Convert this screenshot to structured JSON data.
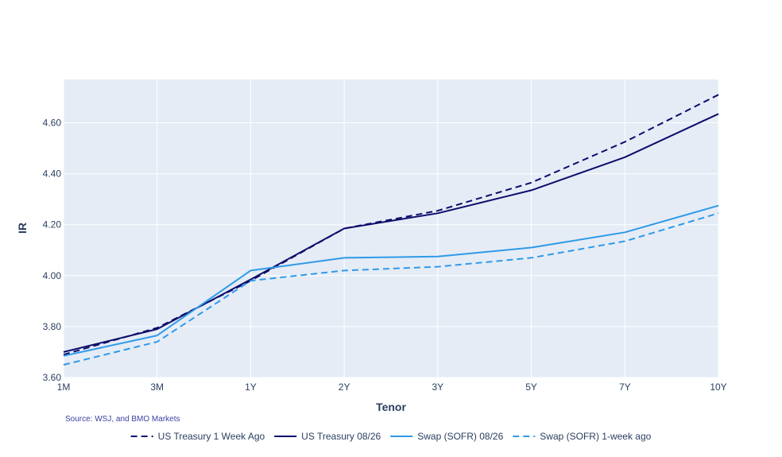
{
  "chart_data": {
    "type": "line",
    "categories": [
      "1M",
      "3M",
      "1Y",
      "2Y",
      "3Y",
      "5Y",
      "7Y",
      "10Y"
    ],
    "xlabel": "Tenor",
    "ylabel": "IR",
    "ylim": [
      3.6,
      4.77
    ],
    "yticks": [
      "3.60",
      "3.80",
      "4.00",
      "4.20",
      "4.40",
      "4.60"
    ],
    "ytick_values": [
      3.6,
      3.8,
      4.0,
      4.2,
      4.4,
      4.6
    ],
    "grid": true,
    "legend_position": "bottom-center",
    "annotation": "Source: WSJ, and BMO Markets",
    "series": [
      {
        "name": "US Treasury 1 Week Ago",
        "color": "#0d0d6b",
        "dash": "dashed",
        "values": [
          3.69,
          3.795,
          3.98,
          4.185,
          4.255,
          4.365,
          4.525,
          4.71
        ]
      },
      {
        "name": "US Treasury 08/26",
        "color": "#0d0d6b",
        "dash": "solid",
        "values": [
          3.7,
          3.79,
          3.985,
          4.185,
          4.245,
          4.335,
          4.465,
          4.635
        ]
      },
      {
        "name": "Swap (SOFR) 08/26",
        "color": "#2f9ae8",
        "dash": "solid",
        "values": [
          3.685,
          3.765,
          4.02,
          4.07,
          4.075,
          4.11,
          4.17,
          4.275
        ]
      },
      {
        "name": "Swap (SOFR) 1-week ago",
        "color": "#2f9ae8",
        "dash": "dashed",
        "values": [
          3.65,
          3.74,
          3.98,
          4.02,
          4.035,
          4.07,
          4.135,
          4.245
        ]
      }
    ]
  }
}
